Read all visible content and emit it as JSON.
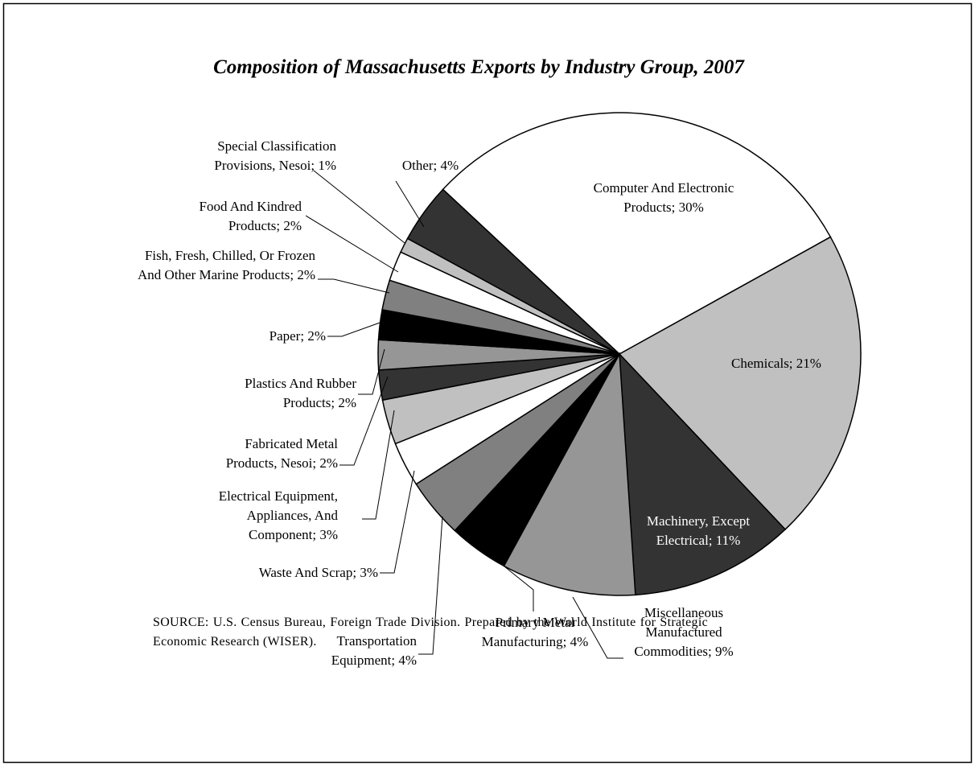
{
  "chart_data": {
    "type": "pie",
    "title": "Composition of Massachusetts Exports by Industry Group, 2007",
    "categories": [
      "Computer And Electronic Products;",
      "Chemicals;",
      "Machinery, Except Electrical;",
      "Miscellaneous Manufactured Commodities;",
      "Primary Metal Manufacturing;",
      "Transportation Equipment;",
      "Waste And Scrap;",
      "Electrical Equipment, Appliances, And Component;",
      "Fabricated Metal Products, Nesoi;",
      "Plastics And Rubber Products;",
      "Paper;",
      "Fish, Fresh, Chilled, Or Frozen And Other Marine Products;",
      "Food And Kindred Products;",
      "Special Classification Provisions, Nesoi;",
      "Other;"
    ],
    "values": [
      30,
      21,
      11,
      9,
      4,
      4,
      3,
      3,
      2,
      2,
      2,
      2,
      2,
      1,
      4
    ],
    "value_labels": [
      "30%",
      "21%",
      "11%",
      "9%",
      "4%",
      "4%",
      "3%",
      "3%",
      "2%",
      "2%",
      "2%",
      "2%",
      "2%",
      "1%",
      "4%"
    ],
    "colors": [
      "#ffffff",
      "#c0c0c0",
      "#333333",
      "#969696",
      "#000000",
      "#808080",
      "#ffffff",
      "#c0c0c0",
      "#333333",
      "#969696",
      "#000000",
      "#808080",
      "#ffffff",
      "#c0c0c0",
      "#333333"
    ],
    "source": "SOURCE: U.S. Census Bureau, Foreign Trade Division. Prepared by the World Institute for Strategic Economic Research (WISER)."
  }
}
